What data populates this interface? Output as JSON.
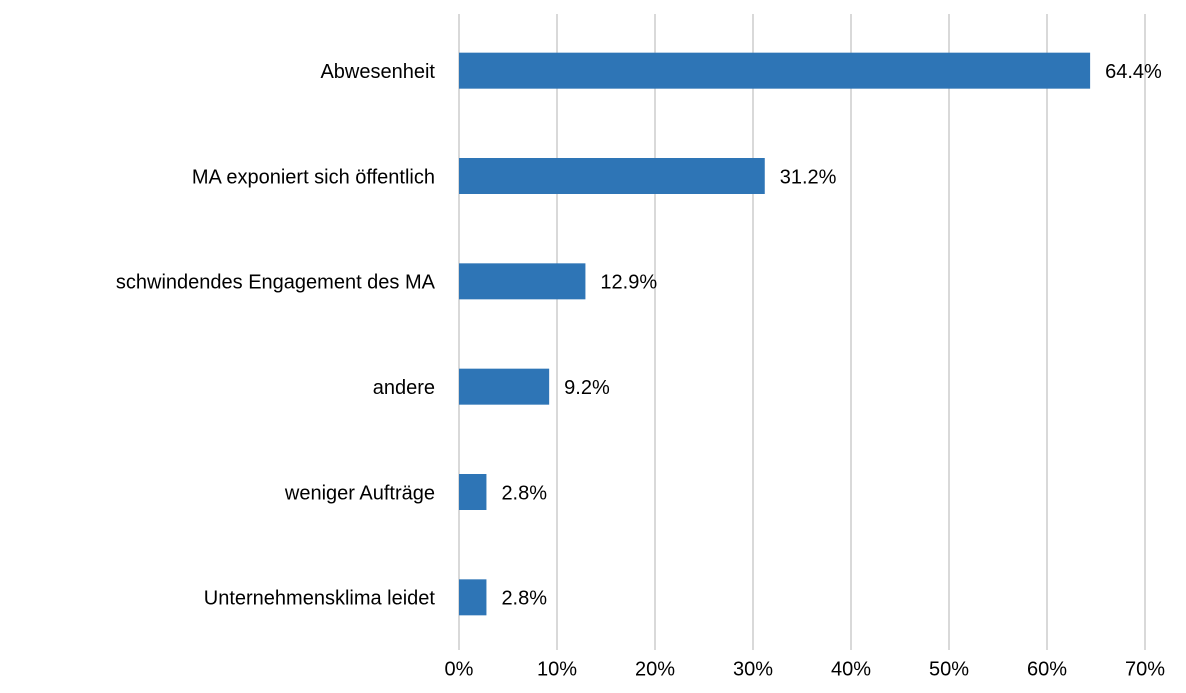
{
  "chart_data": {
    "type": "bar",
    "orientation": "horizontal",
    "categories": [
      "Abwesenheit",
      "MA exponiert sich öffentlich",
      "schwindendes Engagement des MA",
      "andere",
      "weniger Aufträge",
      "Unternehmensklima leidet"
    ],
    "values": [
      64.4,
      31.2,
      12.9,
      9.2,
      2.8,
      2.8
    ],
    "value_labels": [
      "64.4%",
      "31.2%",
      "12.9%",
      "9.2%",
      "2.8%",
      "2.8%"
    ],
    "color": "#2e75b6",
    "xlim": [
      0,
      70
    ],
    "xticks": [
      {
        "value": 0,
        "label": "0%"
      },
      {
        "value": 10,
        "label": "10%"
      },
      {
        "value": 20,
        "label": "20%"
      },
      {
        "value": 30,
        "label": "30%"
      },
      {
        "value": 40,
        "label": "40%"
      },
      {
        "value": 50,
        "label": "50%"
      },
      {
        "value": 60,
        "label": "60%"
      },
      {
        "value": 70,
        "label": "70%"
      }
    ],
    "grid": true
  }
}
